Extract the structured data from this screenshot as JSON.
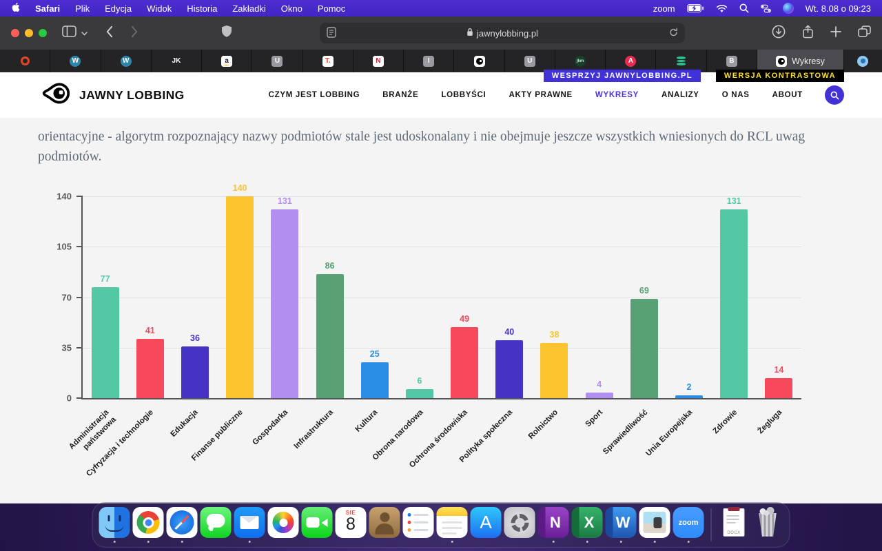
{
  "menubar": {
    "menus": [
      "Safari",
      "Plik",
      "Edycja",
      "Widok",
      "Historia",
      "Zakładki",
      "Okno",
      "Pomoc"
    ],
    "zoom_label": "zoom",
    "clock": "Wt. 8.08 o 09:23",
    "right_icons": [
      "battery-icon",
      "wifi-icon",
      "search-icon",
      "control-center-icon",
      "siri-icon"
    ]
  },
  "toolbar": {
    "url": "jawnylobbing.pl",
    "icons": [
      "sidebar-icon",
      "back-icon",
      "forward-icon",
      "shield-icon",
      "reader-icon",
      "lock-icon",
      "reload-icon",
      "download-icon",
      "share-icon",
      "new-tab-icon",
      "tab-overview-icon"
    ]
  },
  "tabbar": {
    "tabs": [
      {
        "name": "tab-target",
        "kind": "ring"
      },
      {
        "name": "tab-wordpress-1",
        "kind": "circle-text",
        "glyph": "W",
        "bg": "#2f86ad",
        "fg": "#fff"
      },
      {
        "name": "tab-wordpress-2",
        "kind": "circle-text",
        "glyph": "W",
        "bg": "#2f86ad",
        "fg": "#fff"
      },
      {
        "name": "tab-jk",
        "kind": "plain-text",
        "glyph": "JK",
        "fg": "#fff"
      },
      {
        "name": "tab-amazon",
        "kind": "box-text",
        "glyph": "a",
        "bg": "#fff",
        "fg": "#111",
        "underline": "#ff9900"
      },
      {
        "name": "tab-u-1",
        "kind": "box-text",
        "glyph": "U",
        "bg": "#9a9aa0",
        "fg": "#fff"
      },
      {
        "name": "tab-t",
        "kind": "box-text",
        "glyph": "T.",
        "bg": "#fff",
        "fg": "#e8442c"
      },
      {
        "name": "tab-netflix",
        "kind": "box-text",
        "glyph": "N",
        "bg": "#fff",
        "fg": "#d81f26"
      },
      {
        "name": "tab-i",
        "kind": "box-text",
        "glyph": "I",
        "bg": "#9a9aa0",
        "fg": "#fff"
      },
      {
        "name": "tab-jawnylobbing",
        "kind": "eye"
      },
      {
        "name": "tab-u-2",
        "kind": "box-text",
        "glyph": "U",
        "bg": "#9a9aa0",
        "fg": "#fff"
      },
      {
        "name": "tab-jkm",
        "kind": "circle-text",
        "glyph": "jkm",
        "bg": "#17402a",
        "fg": "#cfe8d8"
      },
      {
        "name": "tab-a",
        "kind": "circle-text",
        "glyph": "A",
        "bg": "#ec2b53",
        "fg": "#fff"
      },
      {
        "name": "tab-database",
        "kind": "stack"
      },
      {
        "name": "tab-b",
        "kind": "box-text",
        "glyph": "B",
        "bg": "#9a9aa0",
        "fg": "#fff"
      }
    ],
    "active_tab": {
      "label": "Wykresy",
      "kind": "eye"
    },
    "last_tab": {
      "name": "tab-drop",
      "kind": "drop"
    }
  },
  "banners": {
    "support": "WESPRZYJ JAWNYLOBBING.PL",
    "contrast": "WERSJA KONTRASTOWA"
  },
  "site": {
    "brand": "JAWNY LOBBING",
    "accent": "#4a33d8",
    "nav": [
      {
        "label": "CZYM JEST LOBBING",
        "active": false
      },
      {
        "label": "BRANŻE",
        "active": false
      },
      {
        "label": "LOBBYŚCI",
        "active": false
      },
      {
        "label": "AKTY PRAWNE",
        "active": false
      },
      {
        "label": "WYKRESY",
        "active": true
      },
      {
        "label": "ANALIZY",
        "active": false
      },
      {
        "label": "O NAS",
        "active": false
      },
      {
        "label": "ABOUT",
        "active": false
      }
    ]
  },
  "article": {
    "paragraph": "orientacyjne - algorytm rozpoznający nazwy podmiotów stale jest udoskonalany i nie obejmuje jeszcze wszystkich wniesionych do RCL uwag podmiotów."
  },
  "chart_data": {
    "type": "bar",
    "title": "",
    "xlabel": "",
    "ylabel": "",
    "categories": [
      "Administracja państwowa",
      "Cyfryzacja i technologie",
      "Edukacja",
      "Finanse publiczne",
      "Gospodarka",
      "Infrastruktura",
      "Kultura",
      "Obrona narodowa",
      "Ochrona środowiska",
      "Polityka społeczna",
      "Rolnictwo",
      "Sport",
      "Sprawiedliwość",
      "Unia Europejska",
      "Zdrowie",
      "Żegluga"
    ],
    "categories_multiline": [
      [
        "Administracja",
        "państwowa"
      ],
      [
        "Cyfryzacja i technologie"
      ],
      [
        "Edukacja"
      ],
      [
        "Finanse publiczne"
      ],
      [
        "Gospodarka"
      ],
      [
        "Infrastruktura"
      ],
      [
        "Kultura"
      ],
      [
        "Obrona narodowa"
      ],
      [
        "Ochrona środowiska"
      ],
      [
        "Polityka społeczna"
      ],
      [
        "Rolnictwo"
      ],
      [
        "Sport"
      ],
      [
        "Sprawiedliwość"
      ],
      [
        "Unia Europejska"
      ],
      [
        "Zdrowie"
      ],
      [
        "Żegluga"
      ]
    ],
    "values": [
      77,
      41,
      36,
      140,
      131,
      86,
      25,
      6,
      49,
      40,
      38,
      4,
      69,
      2,
      131,
      14
    ],
    "bar_colors": [
      "#54c8a4",
      "#f8495c",
      "#4533c6",
      "#fbc32d",
      "#b18ef0",
      "#57a175",
      "#2b8ee6",
      "#54c8a4",
      "#f8495c",
      "#4533c6",
      "#fbc32d",
      "#b18ef0",
      "#57a175",
      "#2b8ee6",
      "#54c8a4",
      "#f8495c"
    ],
    "yticks": [
      0,
      35,
      70,
      105,
      140
    ],
    "ylim": [
      0,
      140
    ],
    "grid": true,
    "value_labels": true,
    "legend": "none"
  },
  "dock": {
    "items": [
      {
        "name": "finder",
        "running": true
      },
      {
        "name": "chrome",
        "running": true
      },
      {
        "name": "safari",
        "running": true
      },
      {
        "name": "messages",
        "running": false
      },
      {
        "name": "mail",
        "running": true
      },
      {
        "name": "photos",
        "running": false
      },
      {
        "name": "facetime",
        "running": false
      },
      {
        "name": "calendar",
        "running": false,
        "month": "SIE",
        "day": "8"
      },
      {
        "name": "contacts",
        "running": false
      },
      {
        "name": "reminders",
        "running": false
      },
      {
        "name": "notes",
        "running": true
      },
      {
        "name": "app-store",
        "running": false,
        "glyph": "A"
      },
      {
        "name": "settings",
        "running": false
      },
      {
        "name": "onenote",
        "running": true,
        "glyph": "N"
      },
      {
        "name": "excel",
        "running": true,
        "glyph": "X"
      },
      {
        "name": "word",
        "running": true,
        "glyph": "W"
      },
      {
        "name": "preview",
        "running": true
      },
      {
        "name": "zoom",
        "running": true,
        "label": "zoom"
      },
      {
        "name": "divider",
        "divider": true
      },
      {
        "name": "document",
        "label": "DOCX"
      },
      {
        "name": "trash",
        "running": false
      }
    ]
  }
}
